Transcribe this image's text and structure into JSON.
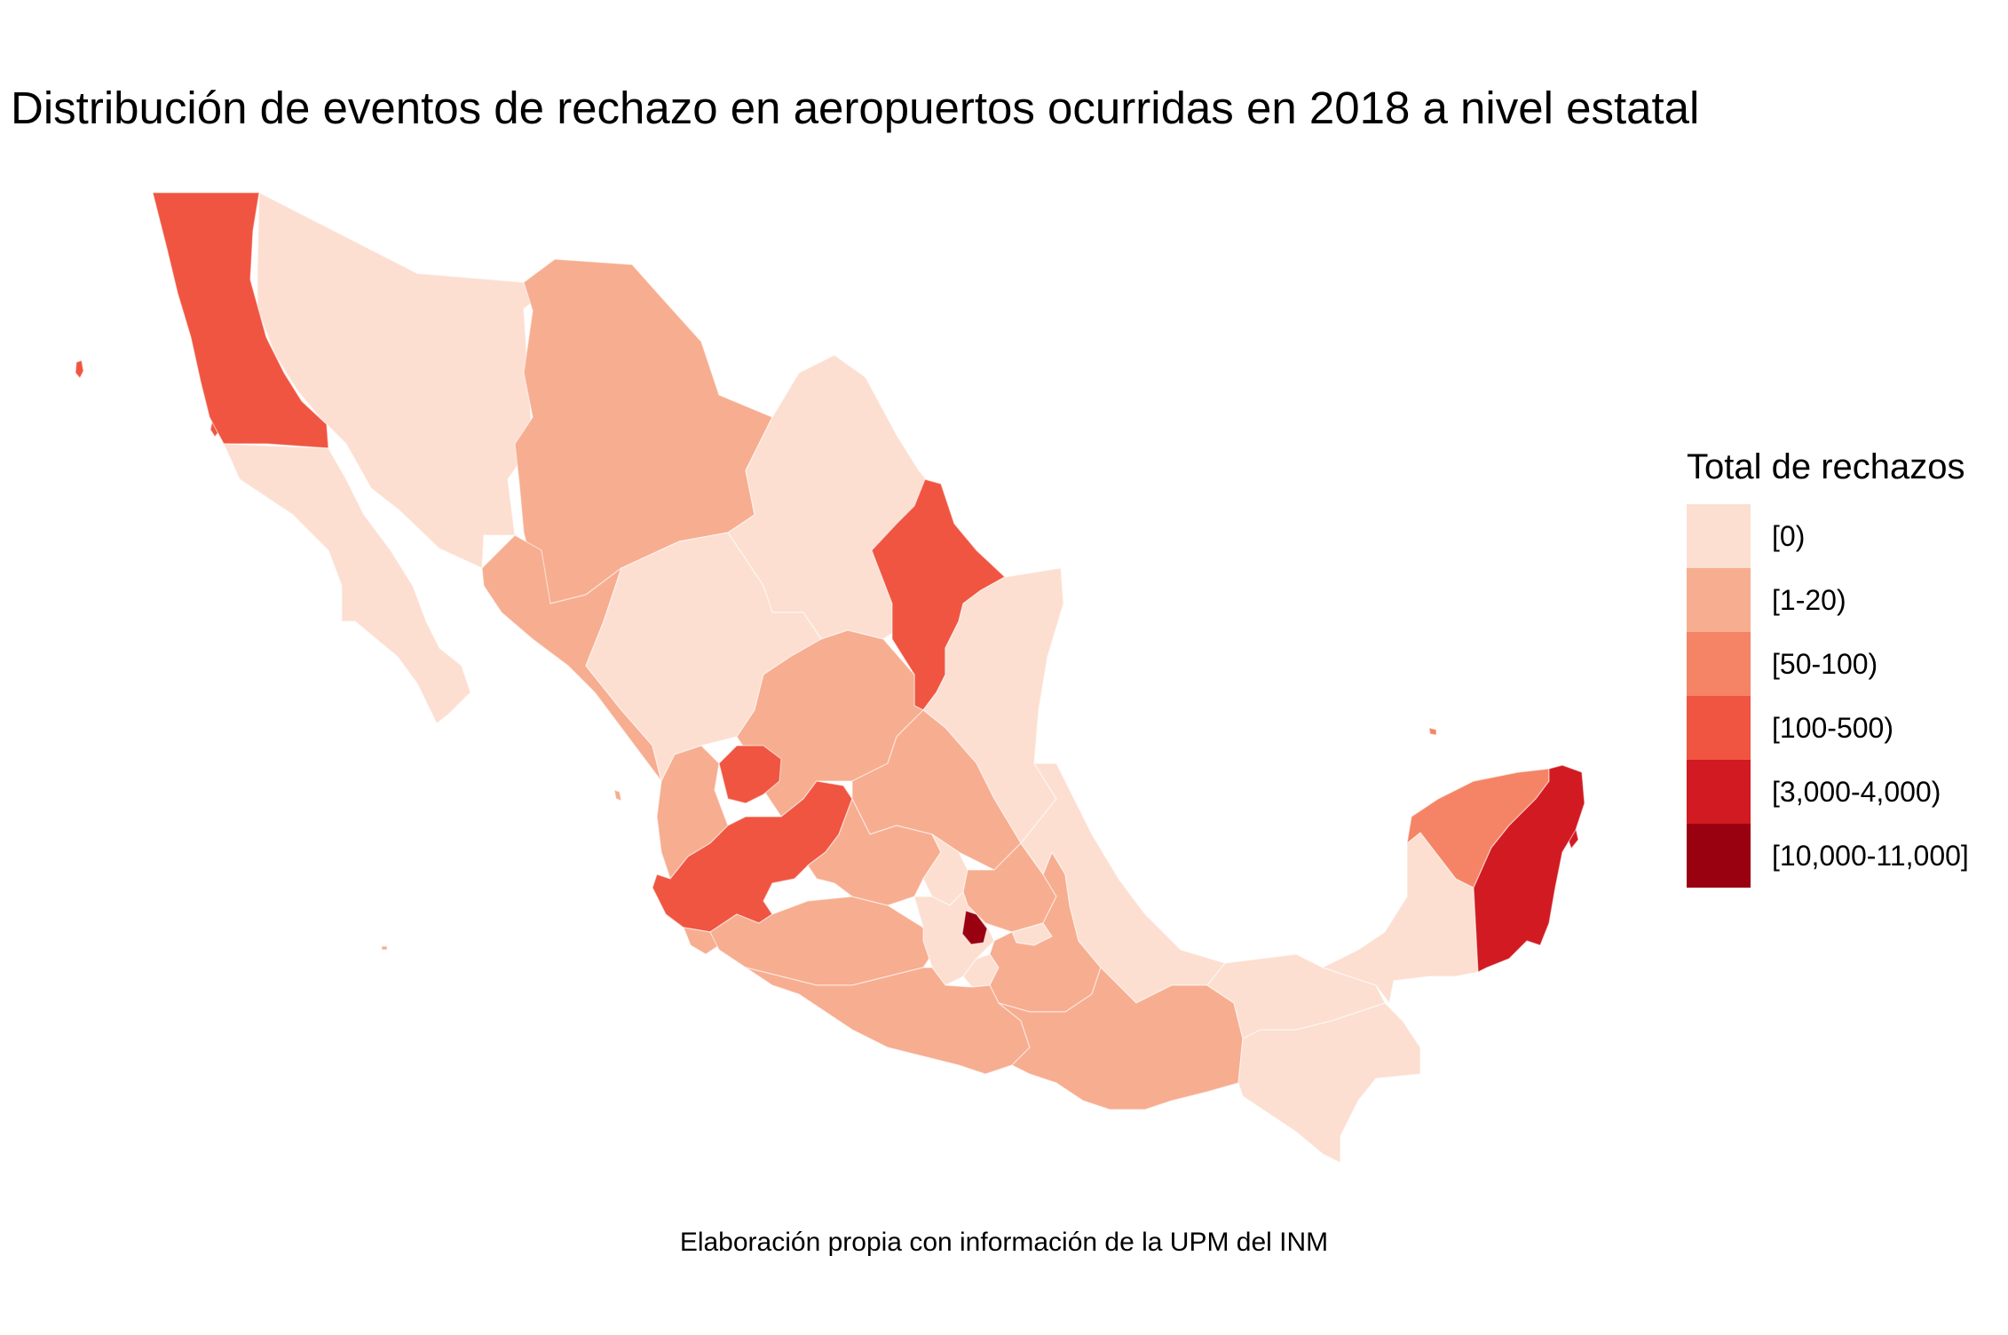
{
  "title": "Distribución de eventos de rechazo en aeropuertos ocurridas en 2018 a nivel estatal",
  "caption": "Elaboración propia con información de la UPM del INM",
  "legend": {
    "title": "Total de rechazos",
    "classes": [
      {
        "label": "[0)",
        "color": "#fcdfd1"
      },
      {
        "label": "[1-20)",
        "color": "#f7ad90"
      },
      {
        "label": "[50-100)",
        "color": "#f58466"
      },
      {
        "label": "[100-500)",
        "color": "#f05541"
      },
      {
        "label": "[3,000-4,000)",
        "color": "#d11a21"
      },
      {
        "label": "[10,000-11,000]",
        "color": "#990010"
      }
    ]
  },
  "map": {
    "states": [
      {
        "id": "baja-california",
        "class": 3
      },
      {
        "id": "baja-california-sur",
        "class": 0
      },
      {
        "id": "sonora",
        "class": 0
      },
      {
        "id": "chihuahua",
        "class": 1
      },
      {
        "id": "coahuila",
        "class": 0
      },
      {
        "id": "nuevo-leon",
        "class": 3
      },
      {
        "id": "tamaulipas",
        "class": 0
      },
      {
        "id": "sinaloa",
        "class": 1
      },
      {
        "id": "durango",
        "class": 0
      },
      {
        "id": "zacatecas",
        "class": 1
      },
      {
        "id": "nayarit",
        "class": 1
      },
      {
        "id": "aguascalientes",
        "class": 3
      },
      {
        "id": "san-luis-potosi",
        "class": 1
      },
      {
        "id": "jalisco",
        "class": 3
      },
      {
        "id": "colima",
        "class": 1
      },
      {
        "id": "michoacan",
        "class": 1
      },
      {
        "id": "guanajuato",
        "class": 1
      },
      {
        "id": "queretaro",
        "class": 0
      },
      {
        "id": "hidalgo",
        "class": 1
      },
      {
        "id": "estado-de-mexico",
        "class": 0
      },
      {
        "id": "ciudad-de-mexico",
        "class": 5
      },
      {
        "id": "morelos",
        "class": 0
      },
      {
        "id": "tlaxcala",
        "class": 0
      },
      {
        "id": "puebla",
        "class": 1
      },
      {
        "id": "veracruz",
        "class": 0
      },
      {
        "id": "guerrero",
        "class": 1
      },
      {
        "id": "oaxaca",
        "class": 1
      },
      {
        "id": "chiapas",
        "class": 0
      },
      {
        "id": "tabasco",
        "class": 0
      },
      {
        "id": "campeche",
        "class": 0
      },
      {
        "id": "yucatan",
        "class": 2
      },
      {
        "id": "quintana-roo",
        "class": 4
      }
    ]
  }
}
